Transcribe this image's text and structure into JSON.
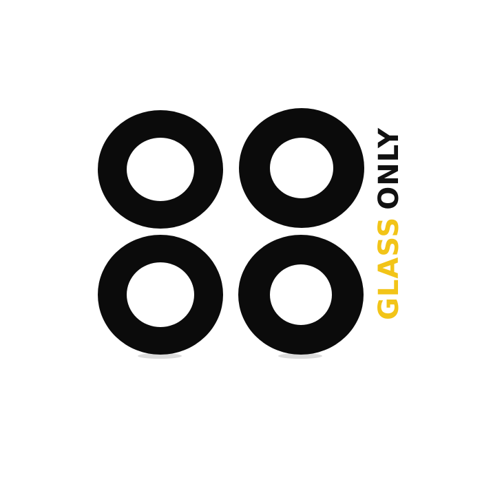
{
  "label": {
    "word1": "GLASS",
    "word2": "ONLY"
  },
  "colors": {
    "background": "#ffffff",
    "ring": "#0b0b0b",
    "ring_shadow": "#d9d9d9",
    "glass_text": "#f2c418",
    "only_text": "#111111"
  },
  "rings": [
    {
      "name": "lens-ring-top-left"
    },
    {
      "name": "lens-ring-top-right"
    },
    {
      "name": "lens-ring-bottom-left"
    },
    {
      "name": "lens-ring-bottom-right"
    }
  ]
}
